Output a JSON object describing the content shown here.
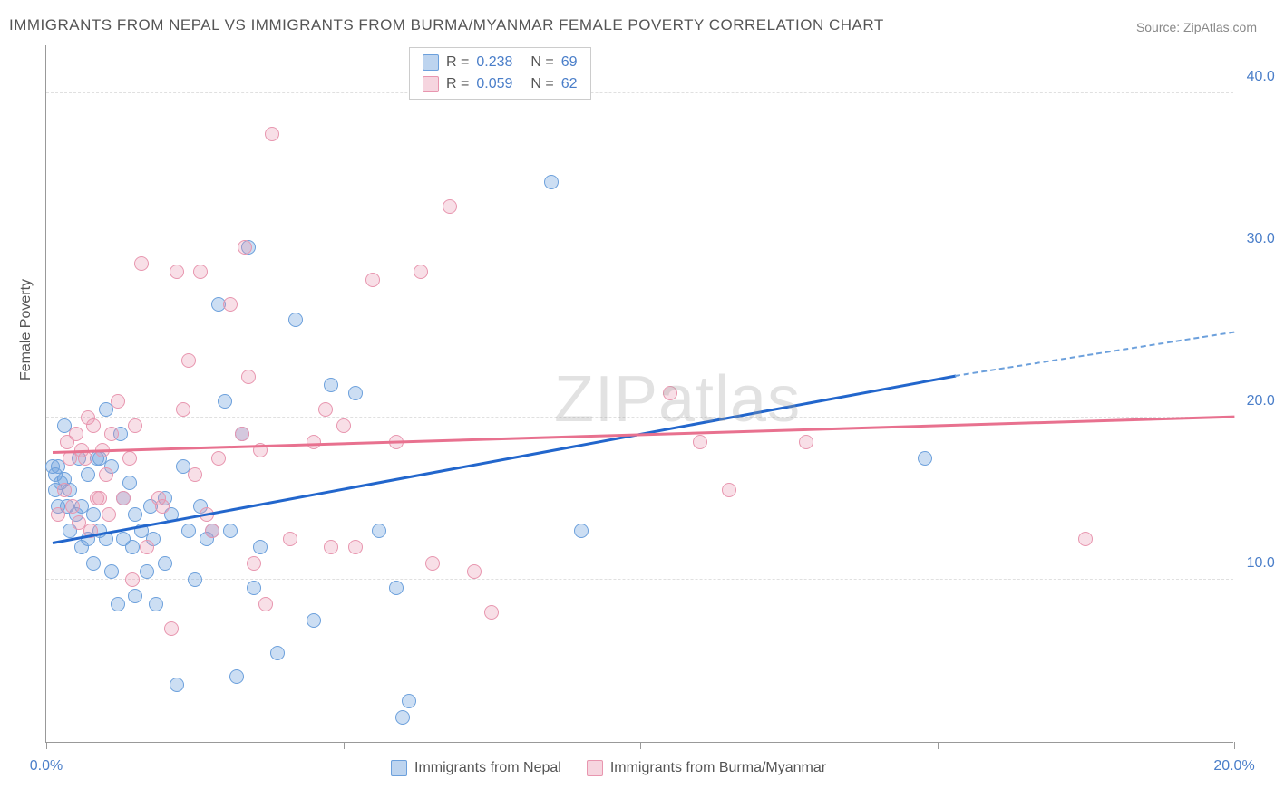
{
  "title": "IMMIGRANTS FROM NEPAL VS IMMIGRANTS FROM BURMA/MYANMAR FEMALE POVERTY CORRELATION CHART",
  "source": "Source: ZipAtlas.com",
  "ylabel": "Female Poverty",
  "watermark": "ZIPatlas",
  "chart": {
    "type": "scatter",
    "xlim": [
      0,
      20
    ],
    "ylim": [
      0,
      43
    ],
    "xticks": [
      0,
      5,
      10,
      15,
      20
    ],
    "xtick_labels": [
      "0.0%",
      "",
      "",
      "",
      "20.0%"
    ],
    "yticks": [
      10,
      20,
      30,
      40
    ],
    "ytick_labels": [
      "10.0%",
      "20.0%",
      "30.0%",
      "40.0%"
    ],
    "background_color": "#ffffff",
    "grid_color": "#e0e0e0",
    "marker_size": 16,
    "series": [
      {
        "id": "nepal",
        "label": "Immigrants from Nepal",
        "marker_fill": "rgba(108,160,220,0.35)",
        "marker_stroke": "#6ca0dc",
        "trend_color": "#2266cc",
        "trend_dash_color": "#6ca0dc",
        "R": "0.238",
        "N": "69",
        "trend": {
          "x1": 0.1,
          "y1": 12.2,
          "x2": 15.3,
          "y2": 22.5,
          "dash_to_x": 20,
          "dash_to_y": 25.2
        },
        "points": [
          [
            0.1,
            17.0
          ],
          [
            0.15,
            16.5
          ],
          [
            0.15,
            15.5
          ],
          [
            0.2,
            17.0
          ],
          [
            0.2,
            14.5
          ],
          [
            0.25,
            16.0
          ],
          [
            0.3,
            16.2
          ],
          [
            0.3,
            19.5
          ],
          [
            0.35,
            14.5
          ],
          [
            0.4,
            13.0
          ],
          [
            0.4,
            15.5
          ],
          [
            0.5,
            14.0
          ],
          [
            0.55,
            17.5
          ],
          [
            0.6,
            12.0
          ],
          [
            0.6,
            14.5
          ],
          [
            0.7,
            16.5
          ],
          [
            0.7,
            12.5
          ],
          [
            0.8,
            11.0
          ],
          [
            0.8,
            14.0
          ],
          [
            0.85,
            17.5
          ],
          [
            0.9,
            17.5
          ],
          [
            0.9,
            13.0
          ],
          [
            1.0,
            20.5
          ],
          [
            1.0,
            12.5
          ],
          [
            1.1,
            17.0
          ],
          [
            1.1,
            10.5
          ],
          [
            1.2,
            8.5
          ],
          [
            1.25,
            19.0
          ],
          [
            1.3,
            12.5
          ],
          [
            1.3,
            15.0
          ],
          [
            1.4,
            16.0
          ],
          [
            1.45,
            12.0
          ],
          [
            1.5,
            14.0
          ],
          [
            1.5,
            9.0
          ],
          [
            1.6,
            13.0
          ],
          [
            1.7,
            10.5
          ],
          [
            1.75,
            14.5
          ],
          [
            1.8,
            12.5
          ],
          [
            1.85,
            8.5
          ],
          [
            2.0,
            15.0
          ],
          [
            2.0,
            11.0
          ],
          [
            2.1,
            14.0
          ],
          [
            2.2,
            3.5
          ],
          [
            2.3,
            17.0
          ],
          [
            2.4,
            13.0
          ],
          [
            2.5,
            10.0
          ],
          [
            2.6,
            14.5
          ],
          [
            2.7,
            12.5
          ],
          [
            2.8,
            13.0
          ],
          [
            2.9,
            27.0
          ],
          [
            3.0,
            21.0
          ],
          [
            3.1,
            13.0
          ],
          [
            3.2,
            4.0
          ],
          [
            3.3,
            19.0
          ],
          [
            3.4,
            30.5
          ],
          [
            3.5,
            9.5
          ],
          [
            3.6,
            12.0
          ],
          [
            3.9,
            5.5
          ],
          [
            4.2,
            26.0
          ],
          [
            4.5,
            7.5
          ],
          [
            4.8,
            22.0
          ],
          [
            5.2,
            21.5
          ],
          [
            5.6,
            13.0
          ],
          [
            5.9,
            9.5
          ],
          [
            6.0,
            1.5
          ],
          [
            6.1,
            2.5
          ],
          [
            8.5,
            34.5
          ],
          [
            9.0,
            13.0
          ],
          [
            14.8,
            17.5
          ]
        ]
      },
      {
        "id": "burma",
        "label": "Immigrants from Burma/Myanmar",
        "marker_fill": "rgba(232,150,175,0.3)",
        "marker_stroke": "#e896af",
        "trend_color": "#e8718f",
        "R": "0.059",
        "N": "62",
        "trend": {
          "x1": 0.1,
          "y1": 17.8,
          "x2": 20,
          "y2": 20.0
        },
        "points": [
          [
            0.2,
            14.0
          ],
          [
            0.3,
            15.5
          ],
          [
            0.35,
            18.5
          ],
          [
            0.4,
            17.5
          ],
          [
            0.45,
            14.5
          ],
          [
            0.5,
            19.0
          ],
          [
            0.55,
            13.5
          ],
          [
            0.6,
            18.0
          ],
          [
            0.65,
            17.5
          ],
          [
            0.7,
            20.0
          ],
          [
            0.75,
            13.0
          ],
          [
            0.8,
            19.5
          ],
          [
            0.85,
            15.0
          ],
          [
            0.9,
            15.0
          ],
          [
            0.95,
            18.0
          ],
          [
            1.0,
            16.5
          ],
          [
            1.05,
            14.0
          ],
          [
            1.1,
            19.0
          ],
          [
            1.2,
            21.0
          ],
          [
            1.3,
            15.0
          ],
          [
            1.4,
            17.5
          ],
          [
            1.45,
            10.0
          ],
          [
            1.5,
            19.5
          ],
          [
            1.6,
            29.5
          ],
          [
            1.7,
            12.0
          ],
          [
            1.9,
            15.0
          ],
          [
            1.95,
            14.5
          ],
          [
            2.1,
            7.0
          ],
          [
            2.2,
            29.0
          ],
          [
            2.3,
            20.5
          ],
          [
            2.4,
            23.5
          ],
          [
            2.5,
            16.5
          ],
          [
            2.6,
            29.0
          ],
          [
            2.7,
            14.0
          ],
          [
            2.8,
            13.0
          ],
          [
            2.9,
            17.5
          ],
          [
            3.1,
            27.0
          ],
          [
            3.3,
            19.0
          ],
          [
            3.35,
            30.5
          ],
          [
            3.4,
            22.5
          ],
          [
            3.5,
            11.0
          ],
          [
            3.6,
            18.0
          ],
          [
            3.7,
            8.5
          ],
          [
            3.8,
            37.5
          ],
          [
            4.1,
            12.5
          ],
          [
            4.5,
            18.5
          ],
          [
            4.7,
            20.5
          ],
          [
            4.8,
            12.0
          ],
          [
            5.0,
            19.5
          ],
          [
            5.2,
            12.0
          ],
          [
            5.5,
            28.5
          ],
          [
            5.9,
            18.5
          ],
          [
            6.3,
            29.0
          ],
          [
            6.5,
            11.0
          ],
          [
            6.8,
            33.0
          ],
          [
            7.2,
            10.5
          ],
          [
            7.5,
            8.0
          ],
          [
            10.5,
            21.5
          ],
          [
            11.0,
            18.5
          ],
          [
            11.5,
            15.5
          ],
          [
            12.8,
            18.5
          ],
          [
            17.5,
            12.5
          ]
        ]
      }
    ]
  },
  "legend_top": {
    "rows": [
      {
        "swatch": "a",
        "r_label": "R =",
        "r_val": "0.238",
        "n_label": "N =",
        "n_val": "69"
      },
      {
        "swatch": "b",
        "r_label": "R =",
        "r_val": "0.059",
        "n_label": "N =",
        "n_val": "62"
      }
    ]
  },
  "legend_bottom": {
    "items": [
      {
        "swatch": "a",
        "label": "Immigrants from Nepal"
      },
      {
        "swatch": "b",
        "label": "Immigrants from Burma/Myanmar"
      }
    ]
  }
}
